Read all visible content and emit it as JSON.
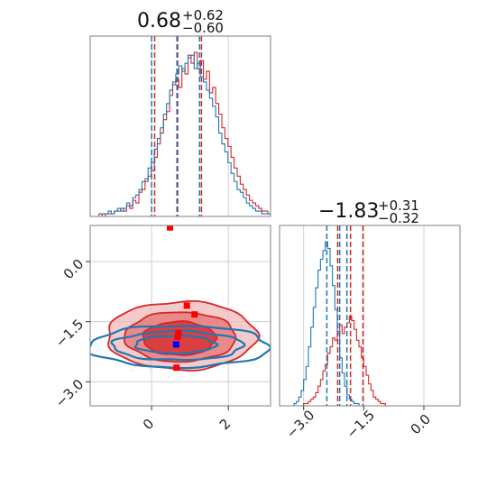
{
  "chart_data": [
    {
      "type": "histogram",
      "panel": "marginal-x",
      "title": {
        "median": "0.68",
        "plus": "+0.62",
        "minus": "−0.60"
      },
      "xlim": [
        -1.6,
        3.1
      ],
      "grid": true,
      "colors": {
        "series_a": "#d62728",
        "series_b": "#1f77b4"
      },
      "series": [
        {
          "color": "#d62728",
          "quantiles": [
            0.08,
            0.68,
            1.3
          ],
          "bin_start": -1.45,
          "bin_width": 0.08,
          "counts": [
            0,
            1,
            0,
            1,
            1,
            1,
            2,
            2,
            3,
            2,
            4,
            3,
            6,
            5,
            9,
            10,
            13,
            15,
            17,
            22,
            27,
            31,
            36,
            39,
            45,
            49,
            51,
            48,
            55,
            53,
            60,
            57,
            61,
            55,
            58,
            51,
            54,
            46,
            48,
            42,
            38,
            33,
            29,
            26,
            22,
            18,
            15,
            12,
            10,
            8,
            6,
            5,
            4,
            3,
            2,
            2,
            1,
            1,
            1,
            0
          ]
        },
        {
          "color": "#1f77b4",
          "quantiles": [
            0.0,
            0.66,
            1.25
          ],
          "bin_start": -1.45,
          "bin_width": 0.08,
          "counts": [
            0,
            0,
            1,
            1,
            2,
            1,
            2,
            3,
            2,
            3,
            5,
            4,
            7,
            8,
            10,
            13,
            14,
            18,
            20,
            25,
            29,
            33,
            38,
            42,
            47,
            50,
            53,
            56,
            54,
            57,
            59,
            60,
            55,
            57,
            52,
            50,
            47,
            44,
            41,
            37,
            31,
            27,
            24,
            20,
            16,
            13,
            10,
            9,
            7,
            5,
            4,
            3,
            2,
            2,
            1,
            1,
            1,
            0,
            0,
            0
          ]
        }
      ],
      "x_ticks": [
        "0",
        "2"
      ],
      "x_tick_values": [
        0,
        2
      ]
    },
    {
      "type": "scatter-contour",
      "panel": "joint",
      "xlim": [
        -1.6,
        3.1
      ],
      "ylim": [
        -3.6,
        0.9
      ],
      "grid": true,
      "x_ticks": [
        "0",
        "2"
      ],
      "x_tick_values": [
        0,
        2
      ],
      "y_ticks": [
        "0.0",
        "−1.5",
        "−3.0"
      ],
      "y_tick_values": [
        0.0,
        -1.5,
        -3.0
      ],
      "red_contours": [
        {
          "level": "outer",
          "cx": 0.78,
          "cy": -1.85,
          "rx": 1.95,
          "ry": 0.85
        },
        {
          "level": "middle",
          "cx": 0.75,
          "cy": -1.88,
          "rx": 1.45,
          "ry": 0.62
        },
        {
          "level": "inner",
          "cx": 0.72,
          "cy": -1.92,
          "rx": 0.95,
          "ry": 0.42
        }
      ],
      "blue_contours": [
        {
          "level": "outer",
          "cx": 0.72,
          "cy": -2.12,
          "rx": 2.35,
          "ry": 0.52
        },
        {
          "level": "middle",
          "cx": 0.68,
          "cy": -2.1,
          "rx": 1.7,
          "ry": 0.36
        },
        {
          "level": "inner",
          "cx": 0.62,
          "cy": -2.07,
          "rx": 1.05,
          "ry": 0.22
        }
      ],
      "red_points": [
        {
          "x": 0.48,
          "y": 0.85
        },
        {
          "x": 0.92,
          "y": -1.1
        },
        {
          "x": 1.12,
          "y": -1.32
        },
        {
          "x": 0.7,
          "y": -1.78
        },
        {
          "x": 0.68,
          "y": -1.88
        },
        {
          "x": 0.65,
          "y": -2.65
        }
      ],
      "blue_points": [
        {
          "x": 0.64,
          "y": -2.07
        }
      ]
    },
    {
      "type": "histogram",
      "panel": "marginal-y",
      "title": {
        "median": "−1.83",
        "plus": "+0.31",
        "minus": "−0.32"
      },
      "xlim": [
        -3.6,
        0.9
      ],
      "grid": true,
      "series": [
        {
          "color": "#d62728",
          "quantiles": [
            -2.15,
            -1.83,
            -1.52
          ],
          "bin_start": -3.6,
          "bin_width": 0.06,
          "counts": [
            0,
            0,
            0,
            0,
            0,
            0,
            0,
            0,
            0,
            0,
            1,
            1,
            2,
            3,
            4,
            6,
            9,
            12,
            16,
            19,
            24,
            27,
            31,
            30,
            34,
            37,
            33,
            36,
            38,
            41,
            39,
            35,
            30,
            27,
            22,
            18,
            14,
            10,
            7,
            4,
            3,
            2,
            1,
            1,
            0,
            0,
            0,
            0,
            0,
            0,
            0,
            0,
            0,
            0,
            0,
            0,
            0,
            0,
            0,
            0,
            0,
            0,
            0,
            0,
            0,
            0,
            0,
            0,
            0,
            0,
            0,
            0,
            0,
            0,
            0
          ]
        },
        {
          "color": "#1f77b4",
          "quantiles": [
            -2.42,
            -2.1,
            -1.92
          ],
          "bin_start": -3.6,
          "bin_width": 0.06,
          "counts": [
            0,
            0,
            0,
            0,
            0,
            0,
            1,
            2,
            4,
            7,
            12,
            18,
            27,
            36,
            45,
            54,
            62,
            67,
            71,
            75,
            72,
            64,
            55,
            44,
            33,
            22,
            15,
            9,
            5,
            3,
            2,
            1,
            1,
            0,
            0,
            0,
            0,
            0,
            0,
            0,
            0,
            0,
            0,
            0,
            0,
            0,
            0,
            0,
            0,
            0,
            0,
            0,
            0,
            0,
            0,
            0,
            0,
            0,
            0,
            0,
            0,
            0,
            0,
            0,
            0,
            0,
            0,
            0,
            0,
            0,
            0,
            0,
            0,
            0,
            0
          ]
        }
      ],
      "x_ticks": [
        "−3.0",
        "−1.5",
        "0.0"
      ],
      "x_tick_values": [
        -3.0,
        -1.5,
        0.0
      ]
    }
  ]
}
